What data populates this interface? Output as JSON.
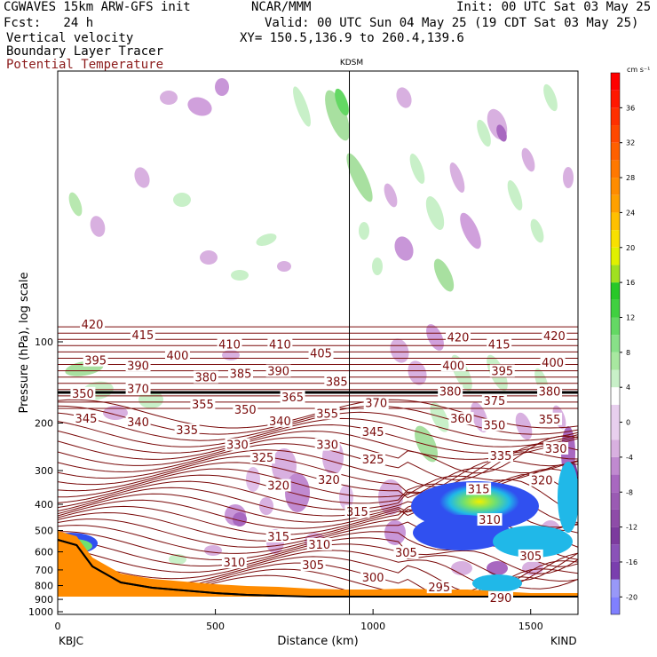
{
  "header": {
    "model": "CGWAVES 15km ARW-GFS init",
    "org": "NCAR/MMM",
    "init": "Init: 00 UTC Sat 03 May 25",
    "fcst": "Fcst:   24 h",
    "valid": "Valid: 00 UTC Sun 04 May 25 (19 CDT Sat 03 May 25)",
    "field1": "Vertical velocity",
    "field2": "Boundary Layer Tracer",
    "field3": "Potential Temperature",
    "xy": "XY= 150.5,136.9 to 260.4,139.6"
  },
  "colors": {
    "theta": "#7a0a0a",
    "tropo": "#000000",
    "ground": "#ff8c00",
    "field3_text": "#8b1a1a"
  },
  "chart_data": {
    "type": "contour-cross-section",
    "xlabel": "Distance (km)",
    "ylabel": "Pressure (hPa), log scale",
    "xlim": [
      0,
      1650
    ],
    "ylim": [
      1100,
      10
    ],
    "yscale": "log",
    "x_ticks": [
      0,
      500,
      1000,
      1500
    ],
    "y_ticks": [
      100,
      200,
      300,
      400,
      500,
      600,
      700,
      800,
      900,
      1000
    ],
    "left_station": "KBJC",
    "right_station": "KIND",
    "marker": {
      "name": "KDSM",
      "x": 925
    },
    "colorbar": {
      "unit": "cm s⁻¹",
      "tick_labels": [
        -20,
        -16,
        -12,
        -8,
        -4,
        0,
        4,
        8,
        12,
        16,
        20,
        24,
        28,
        32,
        36
      ],
      "levels": [
        -22,
        -20,
        -18,
        -16,
        -14,
        -12,
        -10,
        -8,
        -6,
        -4,
        -2,
        2,
        4,
        6,
        8,
        10,
        12,
        14,
        16,
        18,
        20,
        22,
        24,
        26,
        28,
        30,
        32,
        34,
        36,
        38,
        40
      ],
      "colors": [
        "#8080ff",
        "#9898f8",
        "#7a3fae",
        "#8a52b8",
        "#7c3b9e",
        "#8e4ca8",
        "#9a5bb3",
        "#a868c0",
        "#c08ad0",
        "#d8b0e0",
        "#e8cfee",
        "#ffffff",
        "#c8f0c8",
        "#a8e8a0",
        "#88e088",
        "#64d864",
        "#40d040",
        "#28c828",
        "#a0e020",
        "#e0f000",
        "#f8e000",
        "#ffc000",
        "#ffa000",
        "#ff8c00",
        "#ff7800",
        "#ff6000",
        "#ff4800",
        "#ff3000",
        "#ff1800",
        "#ff0000"
      ]
    },
    "theta_labels": [
      {
        "v": "420",
        "x": 110,
        "p": 86
      },
      {
        "v": "415",
        "x": 270,
        "p": 94
      },
      {
        "v": "410",
        "x": 545,
        "p": 102
      },
      {
        "v": "410",
        "x": 705,
        "p": 102
      },
      {
        "v": "405",
        "x": 835,
        "p": 110
      },
      {
        "v": "420",
        "x": 1270,
        "p": 96
      },
      {
        "v": "415",
        "x": 1400,
        "p": 102
      },
      {
        "v": "420",
        "x": 1575,
        "p": 95
      },
      {
        "v": "395",
        "x": 120,
        "p": 117
      },
      {
        "v": "390",
        "x": 255,
        "p": 122
      },
      {
        "v": "400",
        "x": 380,
        "p": 112
      },
      {
        "v": "380",
        "x": 470,
        "p": 135
      },
      {
        "v": "385",
        "x": 580,
        "p": 131
      },
      {
        "v": "390",
        "x": 700,
        "p": 128
      },
      {
        "v": "385",
        "x": 885,
        "p": 140
      },
      {
        "v": "400",
        "x": 1255,
        "p": 122
      },
      {
        "v": "395",
        "x": 1410,
        "p": 128
      },
      {
        "v": "400",
        "x": 1570,
        "p": 119
      },
      {
        "v": "350",
        "x": 80,
        "p": 155
      },
      {
        "v": "370",
        "x": 255,
        "p": 149
      },
      {
        "v": "365",
        "x": 745,
        "p": 160
      },
      {
        "v": "370",
        "x": 1010,
        "p": 168
      },
      {
        "v": "380",
        "x": 1245,
        "p": 152
      },
      {
        "v": "375",
        "x": 1385,
        "p": 165
      },
      {
        "v": "380",
        "x": 1560,
        "p": 152
      },
      {
        "v": "345",
        "x": 90,
        "p": 192
      },
      {
        "v": "340",
        "x": 255,
        "p": 198
      },
      {
        "v": "355",
        "x": 460,
        "p": 170
      },
      {
        "v": "350",
        "x": 595,
        "p": 178
      },
      {
        "v": "355",
        "x": 855,
        "p": 184
      },
      {
        "v": "340",
        "x": 705,
        "p": 196
      },
      {
        "v": "335",
        "x": 410,
        "p": 212
      },
      {
        "v": "360",
        "x": 1280,
        "p": 192
      },
      {
        "v": "350",
        "x": 1385,
        "p": 203
      },
      {
        "v": "355",
        "x": 1560,
        "p": 193
      },
      {
        "v": "345",
        "x": 1000,
        "p": 215
      },
      {
        "v": "330",
        "x": 570,
        "p": 240
      },
      {
        "v": "330",
        "x": 855,
        "p": 240
      },
      {
        "v": "330",
        "x": 1580,
        "p": 248
      },
      {
        "v": "325",
        "x": 650,
        "p": 268
      },
      {
        "v": "325",
        "x": 1000,
        "p": 272
      },
      {
        "v": "335",
        "x": 1405,
        "p": 264
      },
      {
        "v": "320",
        "x": 700,
        "p": 340
      },
      {
        "v": "320",
        "x": 860,
        "p": 323
      },
      {
        "v": "320",
        "x": 1535,
        "p": 325
      },
      {
        "v": "315",
        "x": 1335,
        "p": 350
      },
      {
        "v": "315",
        "x": 950,
        "p": 425
      },
      {
        "v": "315",
        "x": 700,
        "p": 525
      },
      {
        "v": "310",
        "x": 1370,
        "p": 455
      },
      {
        "v": "310",
        "x": 830,
        "p": 562
      },
      {
        "v": "310",
        "x": 560,
        "p": 655
      },
      {
        "v": "305",
        "x": 1500,
        "p": 620
      },
      {
        "v": "305",
        "x": 1105,
        "p": 603
      },
      {
        "v": "305",
        "x": 810,
        "p": 670
      },
      {
        "v": "300",
        "x": 1000,
        "p": 745
      },
      {
        "v": "295",
        "x": 1210,
        "p": 810
      },
      {
        "v": "290",
        "x": 1405,
        "p": 885
      }
    ]
  }
}
